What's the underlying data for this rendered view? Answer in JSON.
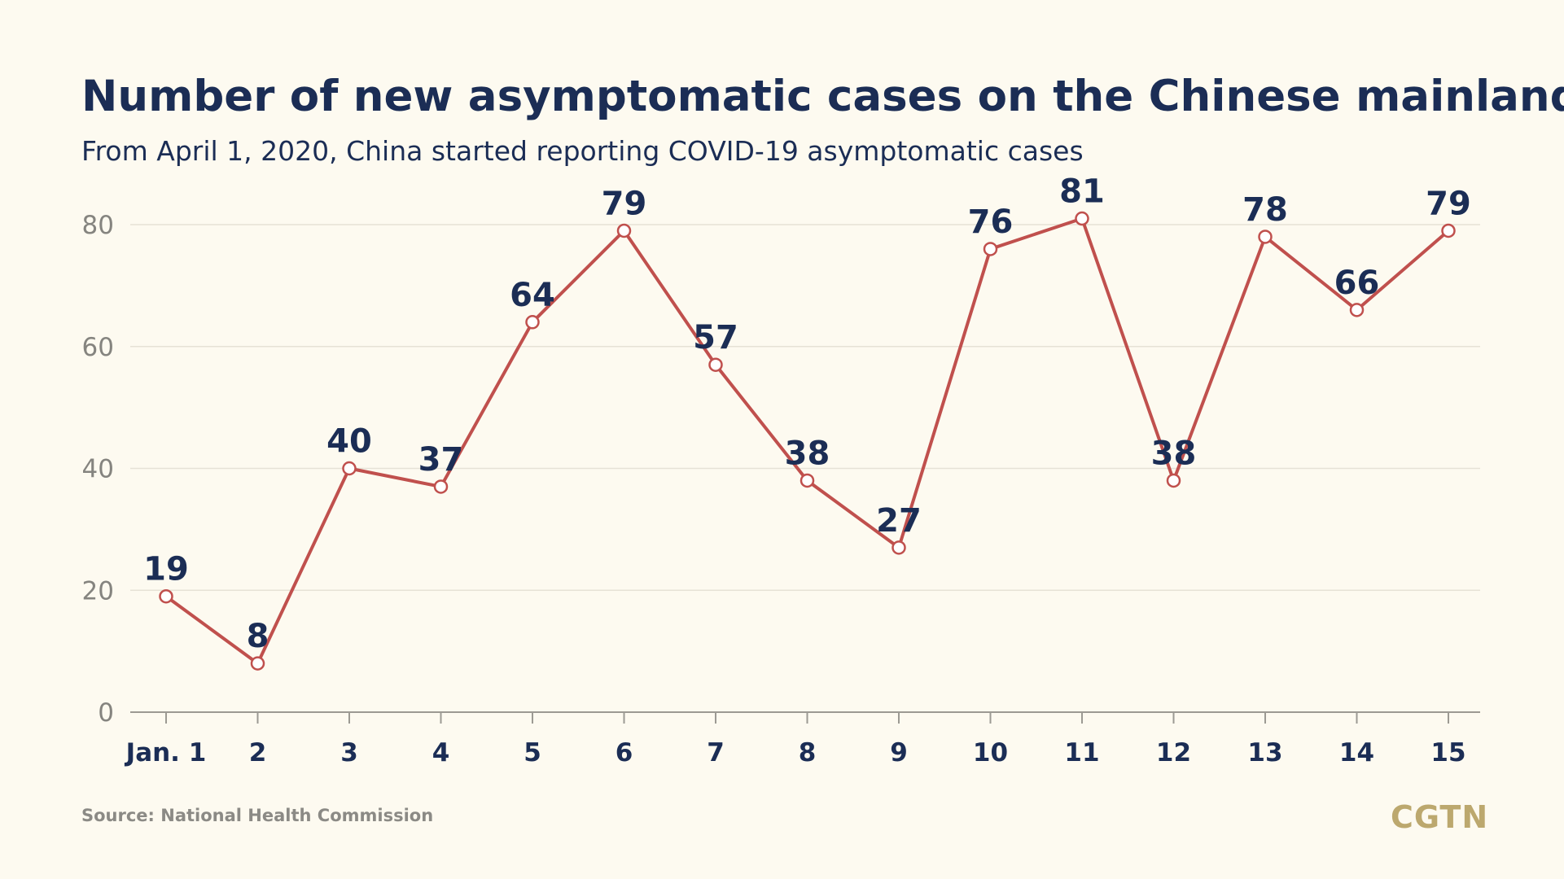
{
  "title": "Number of new asymptomatic cases on the Chinese mainland",
  "subtitle": "From April 1, 2020, China started reporting COVID-19 asymptomatic cases",
  "source": "Source: National Health Commission",
  "logo": "CGTN",
  "colors": {
    "background": "#fdfaf0",
    "line": "#c0504d",
    "text": "#1b2d55",
    "axis_tick": "#85847f",
    "grid": "#e6e2d6",
    "logo": "#bca86e"
  },
  "chart_data": {
    "type": "line",
    "categories": [
      "Jan. 1",
      "2",
      "3",
      "4",
      "5",
      "6",
      "7",
      "8",
      "9",
      "10",
      "11",
      "12",
      "13",
      "14",
      "15"
    ],
    "series": [
      {
        "values": [
          19,
          8,
          40,
          37,
          64,
          79,
          57,
          38,
          27,
          76,
          81,
          38,
          78,
          66,
          79
        ]
      }
    ],
    "ylim": [
      0,
      80
    ],
    "yticks": [
      0,
      20,
      40,
      60,
      80
    ],
    "grid": true,
    "data_labels": true,
    "title": "",
    "xlabel": "",
    "ylabel": ""
  }
}
